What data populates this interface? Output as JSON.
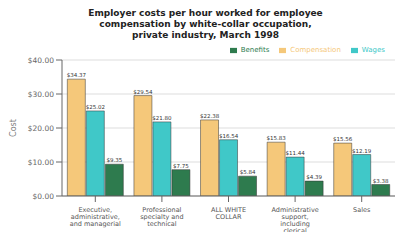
{
  "chart_data": {
    "type": "bar",
    "title": "Employer costs per hour worked for employee\ncompensation by white-collar occupation,\nprivate industry, March 1998",
    "categories": [
      "Executive,\nadministrative,\nand managerial",
      "Professional\nspecialty and\ntechnical",
      "ALL WHITE\nCOLLAR",
      "Administrative\nsupport,\nincluding\nclerical",
      "Sales"
    ],
    "series": [
      {
        "name": "Compensation",
        "color": "#F5C87A",
        "values": [
          34.37,
          29.54,
          22.38,
          15.83,
          15.56
        ],
        "value_labels": [
          "$34.37",
          "$29.54",
          "$22.38",
          "$15.83",
          "$15.56"
        ]
      },
      {
        "name": "Wages",
        "color": "#40C8C8",
        "values": [
          25.02,
          21.8,
          16.54,
          11.44,
          12.19
        ],
        "value_labels": [
          "$25.02",
          "$21.80",
          "$16.54",
          "$11.44",
          "$12.19"
        ]
      },
      {
        "name": "Benefits",
        "color": "#2E7B4E",
        "values": [
          9.35,
          7.75,
          5.84,
          4.39,
          3.38
        ],
        "value_labels": [
          "$9.35",
          "$7.75",
          "$5.84",
          "$4.39",
          "$3.38"
        ]
      }
    ],
    "ylabel": "Cost",
    "ylim": [
      0,
      40
    ],
    "yticks": [
      {
        "value": 0,
        "label": "$0.00"
      },
      {
        "value": 10,
        "label": "$10.00"
      },
      {
        "value": 20,
        "label": "$20.00"
      },
      {
        "value": 30,
        "label": "$30.00"
      },
      {
        "value": 40,
        "label": "$40.00"
      }
    ],
    "grid": true,
    "legend": "upper right",
    "data_labels": true
  }
}
